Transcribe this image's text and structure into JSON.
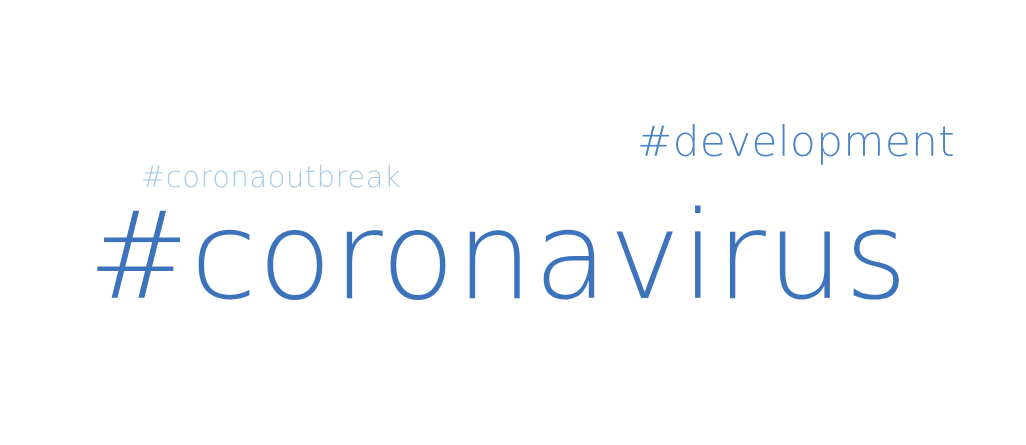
{
  "word_cloud": {
    "words": [
      {
        "text": "#development",
        "color": "#4a84c6"
      },
      {
        "text": "#coronaoutbreak",
        "color": "#a9cce4"
      },
      {
        "text": "#coronavirus",
        "color": "#3c73bb"
      }
    ]
  }
}
